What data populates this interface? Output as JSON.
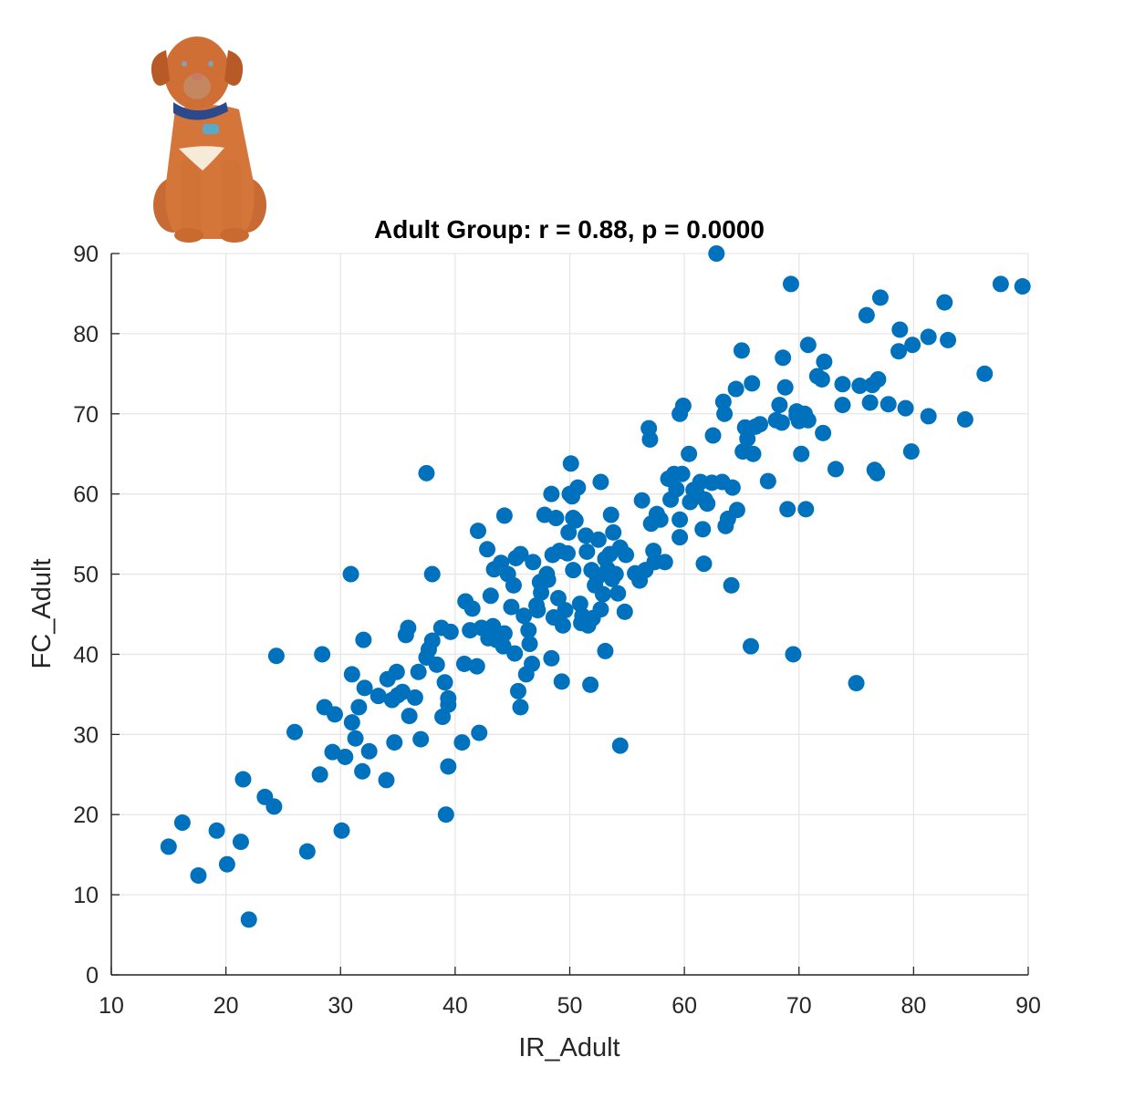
{
  "chart_data": {
    "type": "scatter",
    "title": "Adult Group: r = 0.88, p = 0.0000",
    "xlabel": "IR_Adult",
    "ylabel": "FC_Adult",
    "xlim": [
      10,
      90
    ],
    "ylim": [
      0,
      90
    ],
    "xticks": [
      10,
      20,
      30,
      40,
      50,
      60,
      70,
      80,
      90
    ],
    "yticks": [
      0,
      10,
      20,
      30,
      40,
      50,
      60,
      70,
      80,
      90
    ],
    "grid": true,
    "legend": null,
    "marker_color": "#0072BD",
    "stats": {
      "r": 0.88,
      "p": "0.0000"
    },
    "series": [
      {
        "name": "Adult",
        "points": [
          [
            15.0,
            16.0
          ],
          [
            16.2,
            19.0
          ],
          [
            17.6,
            12.4
          ],
          [
            19.2,
            18.0
          ],
          [
            20.1,
            13.8
          ],
          [
            21.3,
            16.6
          ],
          [
            21.5,
            24.4
          ],
          [
            22.0,
            6.9
          ],
          [
            23.4,
            22.2
          ],
          [
            24.2,
            21.0
          ],
          [
            24.4,
            39.8
          ],
          [
            26.0,
            30.3
          ],
          [
            27.1,
            15.4
          ],
          [
            28.2,
            25.0
          ],
          [
            28.4,
            40.0
          ],
          [
            28.6,
            33.4
          ],
          [
            29.3,
            27.8
          ],
          [
            29.5,
            32.5
          ],
          [
            30.1,
            18.0
          ],
          [
            30.4,
            27.2
          ],
          [
            30.9,
            50.0
          ],
          [
            31.0,
            37.5
          ],
          [
            31.0,
            31.5
          ],
          [
            31.3,
            29.5
          ],
          [
            31.6,
            33.4
          ],
          [
            31.9,
            25.4
          ],
          [
            32.0,
            41.8
          ],
          [
            32.1,
            35.8
          ],
          [
            32.5,
            27.9
          ],
          [
            33.3,
            34.8
          ],
          [
            34.0,
            24.3
          ],
          [
            34.1,
            36.9
          ],
          [
            34.5,
            34.3
          ],
          [
            34.7,
            29.0
          ],
          [
            34.9,
            37.8
          ],
          [
            35.0,
            34.9
          ],
          [
            35.4,
            35.3
          ],
          [
            35.7,
            42.4
          ],
          [
            35.9,
            43.3
          ],
          [
            36.0,
            32.3
          ],
          [
            36.5,
            34.6
          ],
          [
            36.8,
            37.8
          ],
          [
            37.0,
            29.4
          ],
          [
            37.5,
            62.6
          ],
          [
            37.5,
            39.6
          ],
          [
            37.7,
            40.6
          ],
          [
            38.0,
            50.0
          ],
          [
            38.0,
            41.7
          ],
          [
            38.4,
            38.7
          ],
          [
            38.8,
            43.3
          ],
          [
            38.9,
            32.2
          ],
          [
            39.1,
            36.5
          ],
          [
            39.2,
            20.0
          ],
          [
            39.4,
            26.0
          ],
          [
            39.4,
            33.7
          ],
          [
            39.4,
            34.5
          ],
          [
            39.6,
            42.8
          ],
          [
            40.6,
            29.0
          ],
          [
            40.8,
            38.8
          ],
          [
            40.9,
            46.6
          ],
          [
            41.3,
            43.0
          ],
          [
            41.5,
            45.7
          ],
          [
            41.9,
            38.5
          ],
          [
            42.1,
            30.2
          ],
          [
            42.0,
            55.4
          ],
          [
            42.3,
            43.3
          ],
          [
            42.8,
            53.1
          ],
          [
            42.9,
            42.0
          ],
          [
            43.1,
            47.3
          ],
          [
            43.3,
            43.5
          ],
          [
            43.4,
            50.6
          ],
          [
            43.6,
            41.8
          ],
          [
            43.9,
            42.3
          ],
          [
            44.0,
            51.4
          ],
          [
            44.2,
            41.0
          ],
          [
            44.3,
            57.3
          ],
          [
            44.3,
            42.6
          ],
          [
            44.6,
            50.0
          ],
          [
            44.9,
            45.9
          ],
          [
            45.1,
            48.6
          ],
          [
            45.2,
            40.1
          ],
          [
            45.3,
            52.0
          ],
          [
            45.5,
            35.4
          ],
          [
            45.7,
            52.5
          ],
          [
            45.7,
            33.4
          ],
          [
            46.0,
            44.8
          ],
          [
            46.2,
            37.5
          ],
          [
            46.4,
            43.0
          ],
          [
            46.5,
            41.3
          ],
          [
            46.7,
            38.8
          ],
          [
            46.8,
            51.5
          ],
          [
            47.1,
            46.1
          ],
          [
            47.2,
            45.5
          ],
          [
            47.4,
            49.0
          ],
          [
            47.5,
            47.7
          ],
          [
            47.8,
            57.4
          ],
          [
            48.0,
            50.0
          ],
          [
            48.1,
            49.3
          ],
          [
            48.4,
            39.5
          ],
          [
            48.4,
            60.0
          ],
          [
            48.5,
            52.4
          ],
          [
            48.6,
            44.6
          ],
          [
            48.8,
            57.0
          ],
          [
            49.0,
            47.0
          ],
          [
            49.1,
            52.9
          ],
          [
            49.3,
            36.6
          ],
          [
            49.4,
            43.6
          ],
          [
            49.6,
            45.5
          ],
          [
            49.8,
            52.6
          ],
          [
            49.9,
            55.2
          ],
          [
            50.0,
            60.0
          ],
          [
            50.1,
            63.8
          ],
          [
            50.2,
            59.7
          ],
          [
            50.3,
            57.0
          ],
          [
            50.3,
            50.5
          ],
          [
            50.5,
            56.7
          ],
          [
            50.7,
            60.8
          ],
          [
            50.9,
            46.3
          ],
          [
            51.0,
            43.9
          ],
          [
            51.1,
            44.8
          ],
          [
            51.4,
            54.8
          ],
          [
            51.5,
            52.8
          ],
          [
            51.6,
            43.6
          ],
          [
            51.8,
            36.2
          ],
          [
            51.9,
            50.5
          ],
          [
            52.0,
            44.5
          ],
          [
            52.2,
            48.6
          ],
          [
            52.4,
            49.6
          ],
          [
            52.5,
            54.3
          ],
          [
            52.7,
            61.5
          ],
          [
            52.7,
            45.6
          ],
          [
            52.9,
            47.5
          ],
          [
            53.1,
            40.4
          ],
          [
            53.1,
            51.9
          ],
          [
            53.3,
            50.6
          ],
          [
            53.5,
            52.5
          ],
          [
            53.6,
            57.4
          ],
          [
            53.7,
            49.4
          ],
          [
            53.8,
            55.2
          ],
          [
            54.0,
            50.0
          ],
          [
            54.2,
            47.6
          ],
          [
            54.4,
            28.6
          ],
          [
            54.4,
            53.3
          ],
          [
            54.8,
            45.3
          ],
          [
            54.9,
            52.4
          ],
          [
            55.7,
            50.1
          ],
          [
            56.1,
            49.2
          ],
          [
            56.3,
            59.2
          ],
          [
            56.6,
            50.5
          ],
          [
            56.9,
            68.2
          ],
          [
            57.0,
            66.8
          ],
          [
            57.1,
            56.3
          ],
          [
            57.3,
            52.9
          ],
          [
            57.4,
            51.5
          ],
          [
            57.6,
            57.5
          ],
          [
            57.9,
            56.8
          ],
          [
            58.3,
            51.5
          ],
          [
            58.6,
            61.9
          ],
          [
            58.8,
            59.3
          ],
          [
            59.1,
            62.5
          ],
          [
            59.3,
            60.6
          ],
          [
            59.6,
            56.8
          ],
          [
            59.6,
            54.6
          ],
          [
            59.6,
            70.0
          ],
          [
            59.8,
            62.5
          ],
          [
            59.9,
            71.0
          ],
          [
            60.4,
            65.0
          ],
          [
            60.5,
            59.0
          ],
          [
            60.8,
            60.5
          ],
          [
            61.1,
            60.0
          ],
          [
            61.4,
            61.5
          ],
          [
            61.6,
            55.6
          ],
          [
            61.7,
            51.3
          ],
          [
            61.8,
            59.3
          ],
          [
            62.0,
            58.8
          ],
          [
            62.4,
            61.4
          ],
          [
            62.5,
            67.3
          ],
          [
            62.8,
            90.0
          ],
          [
            63.3,
            61.5
          ],
          [
            63.4,
            71.5
          ],
          [
            63.5,
            70.0
          ],
          [
            63.6,
            56.0
          ],
          [
            63.8,
            56.9
          ],
          [
            64.1,
            48.6
          ],
          [
            64.2,
            60.8
          ],
          [
            64.5,
            73.1
          ],
          [
            64.6,
            58.0
          ],
          [
            65.0,
            77.9
          ],
          [
            65.1,
            65.3
          ],
          [
            65.3,
            68.3
          ],
          [
            65.5,
            66.9
          ],
          [
            65.8,
            41.0
          ],
          [
            65.9,
            73.8
          ],
          [
            66.0,
            65.0
          ],
          [
            66.2,
            68.4
          ],
          [
            66.6,
            68.7
          ],
          [
            67.3,
            61.6
          ],
          [
            68.0,
            69.2
          ],
          [
            68.3,
            71.1
          ],
          [
            68.5,
            68.9
          ],
          [
            68.6,
            77.0
          ],
          [
            68.8,
            73.3
          ],
          [
            69.0,
            58.1
          ],
          [
            69.3,
            86.2
          ],
          [
            69.5,
            40.0
          ],
          [
            69.8,
            70.3
          ],
          [
            69.8,
            69.8
          ],
          [
            70.0,
            69.1
          ],
          [
            70.2,
            65.0
          ],
          [
            70.5,
            70.0
          ],
          [
            70.6,
            58.1
          ],
          [
            70.8,
            78.6
          ],
          [
            70.8,
            69.2
          ],
          [
            71.6,
            74.7
          ],
          [
            72.0,
            74.3
          ],
          [
            72.1,
            67.6
          ],
          [
            72.2,
            76.5
          ],
          [
            73.2,
            63.1
          ],
          [
            73.8,
            71.1
          ],
          [
            73.8,
            73.7
          ],
          [
            75.0,
            36.4
          ],
          [
            75.3,
            73.5
          ],
          [
            75.9,
            82.3
          ],
          [
            76.2,
            71.4
          ],
          [
            76.4,
            73.6
          ],
          [
            76.6,
            63.0
          ],
          [
            76.8,
            62.6
          ],
          [
            76.9,
            74.3
          ],
          [
            77.1,
            84.5
          ],
          [
            77.8,
            71.2
          ],
          [
            78.7,
            77.8
          ],
          [
            78.8,
            80.5
          ],
          [
            79.3,
            70.7
          ],
          [
            79.8,
            65.3
          ],
          [
            79.9,
            78.6
          ],
          [
            81.3,
            79.6
          ],
          [
            81.3,
            69.7
          ],
          [
            82.7,
            83.9
          ],
          [
            83.0,
            79.2
          ],
          [
            84.5,
            69.3
          ],
          [
            86.2,
            75.0
          ],
          [
            87.6,
            86.2
          ],
          [
            89.5,
            85.9
          ]
        ]
      }
    ]
  },
  "image": {
    "decorative_picture": "puppy-dog-illustration"
  }
}
